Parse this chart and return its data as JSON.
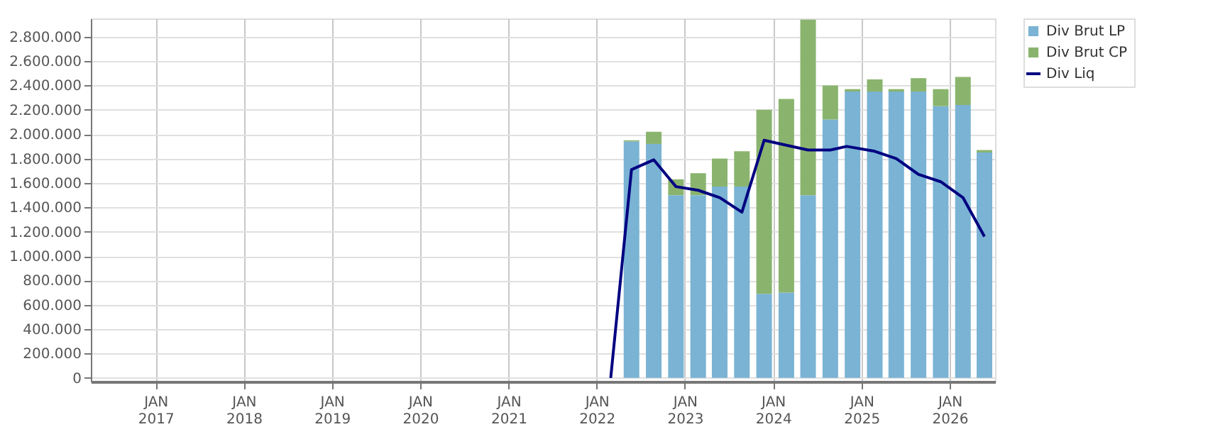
{
  "chart_data": {
    "type": "bar",
    "stacked": true,
    "x": [
      "2022-05-25",
      "2022-08-25",
      "2022-11-25",
      "2023-02-25",
      "2023-05-25",
      "2023-08-25",
      "2023-11-25",
      "2024-02-25",
      "2024-05-25",
      "2024-08-25",
      "2024-11-25",
      "2025-02-25",
      "2025-05-25",
      "2025-08-25",
      "2025-11-25",
      "2026-02-25",
      "2026-05-25"
    ],
    "series": [
      {
        "name": "Div Brut LP",
        "color": "#7ab3d4",
        "values": [
          1940000,
          1920000,
          1500000,
          1500000,
          1570000,
          1570000,
          690000,
          700000,
          1500000,
          2120000,
          2350000,
          2350000,
          2350000,
          2350000,
          2230000,
          2240000,
          1850000
        ]
      },
      {
        "name": "Div Brut CP",
        "color": "#8ab46e",
        "values": [
          10000,
          100000,
          130000,
          180000,
          230000,
          290000,
          1510000,
          1590000,
          1440000,
          280000,
          20000,
          100000,
          20000,
          110000,
          140000,
          230000,
          20000
        ]
      },
      {
        "name": "Div Liq",
        "type": "line",
        "color": "#000080",
        "x": [
          "2022-02-28",
          "2022-05-25",
          "2022-08-25",
          "2022-11-25",
          "2023-02-25",
          "2023-05-25",
          "2023-08-25",
          "2023-11-25",
          "2024-02-25",
          "2024-05-25",
          "2024-08-25",
          "2024-11-01",
          "2025-02-25",
          "2025-05-25",
          "2025-08-25",
          "2025-11-25",
          "2026-02-25",
          "2026-05-25"
        ],
        "values": [
          0,
          1710000,
          1790000,
          1570000,
          1540000,
          1480000,
          1360000,
          1950000,
          1910000,
          1870000,
          1870000,
          1900000,
          1860000,
          1800000,
          1670000,
          1610000,
          1480000,
          1160000
        ]
      }
    ],
    "ylim": [
      -30000,
      2950000
    ],
    "yticks": [
      {
        "value": 0,
        "label": "0"
      },
      {
        "value": 200000,
        "label": "200.000"
      },
      {
        "value": 400000,
        "label": "400.000"
      },
      {
        "value": 600000,
        "label": "600.000"
      },
      {
        "value": 800000,
        "label": "800.000"
      },
      {
        "value": 1000000,
        "label": "1.000.000"
      },
      {
        "value": 1200000,
        "label": "1.200.000"
      },
      {
        "value": 1400000,
        "label": "1.400.000"
      },
      {
        "value": 1600000,
        "label": "1.600.000"
      },
      {
        "value": 1800000,
        "label": "1.800.000"
      },
      {
        "value": 2000000,
        "label": "2.000.000"
      },
      {
        "value": 2200000,
        "label": "2.200.000"
      },
      {
        "value": 2400000,
        "label": "2.400.000"
      },
      {
        "value": 2600000,
        "label": "2.600.000"
      },
      {
        "value": 2800000,
        "label": "2.800.000"
      }
    ],
    "xlim": [
      "2016-04-08",
      "2026-07-08"
    ],
    "xticks": [
      {
        "value": "2017-01-01",
        "label": "JAN\n2017"
      },
      {
        "value": "2018-01-01",
        "label": "JAN\n2018"
      },
      {
        "value": "2019-01-01",
        "label": "JAN\n2019"
      },
      {
        "value": "2020-01-01",
        "label": "JAN\n2020"
      },
      {
        "value": "2021-01-01",
        "label": "JAN\n2021"
      },
      {
        "value": "2022-01-01",
        "label": "JAN\n2022"
      },
      {
        "value": "2023-01-01",
        "label": "JAN\n2023"
      },
      {
        "value": "2024-01-01",
        "label": "JAN\n2024"
      },
      {
        "value": "2025-01-01",
        "label": "JAN\n2025"
      },
      {
        "value": "2026-01-01",
        "label": "JAN\n2026"
      }
    ],
    "grid": true,
    "legend": "top right",
    "marker": "none",
    "line_style": "solid"
  }
}
